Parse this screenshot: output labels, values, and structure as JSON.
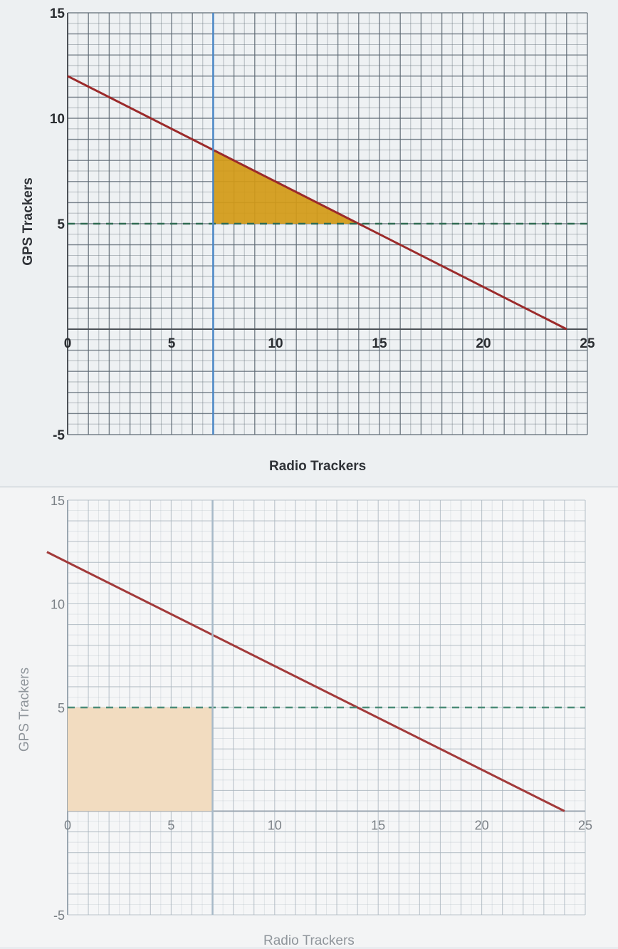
{
  "chart_data": [
    {
      "type": "line",
      "xlabel": "Radio Trackers",
      "ylabel": "GPS Trackers",
      "xlim": [
        0,
        25
      ],
      "ylim": [
        -5,
        15
      ],
      "x_ticks": [
        0,
        5,
        10,
        15,
        20,
        25
      ],
      "y_ticks": [
        -5,
        5,
        10,
        15
      ],
      "x_tick_labels": [
        "0",
        "5",
        "10",
        "15",
        "20",
        "25"
      ],
      "y_tick_labels": [
        "-5",
        "5",
        "10",
        "15"
      ],
      "grid": true,
      "series": [
        {
          "style": "solid",
          "color": "#9b2a2a",
          "x": [
            0,
            24
          ],
          "y": [
            12,
            0
          ]
        },
        {
          "style": "dashed",
          "color": "#2f6b52",
          "x": [
            0,
            25
          ],
          "y": [
            5,
            5
          ]
        },
        {
          "style": "solid-vertical",
          "color": "#4a86c5",
          "x": [
            7,
            7
          ],
          "y": [
            -5,
            15
          ]
        }
      ],
      "shaded_regions": [
        {
          "color": "#d39a16",
          "vertices": [
            [
              7,
              5
            ],
            [
              7,
              8.5
            ],
            [
              14,
              5
            ]
          ]
        }
      ],
      "colors": {
        "line": "#9b2a2a",
        "dashed": "#2f6b52",
        "vertical": "#4a86c5",
        "shade": "#d39a16",
        "grid": "#5a6670"
      }
    },
    {
      "type": "line",
      "xlabel": "Radio Trackers",
      "ylabel": "GPS Trackers",
      "xlim": [
        0,
        25
      ],
      "ylim": [
        -5,
        15
      ],
      "x_ticks": [
        0,
        5,
        10,
        15,
        20,
        25
      ],
      "y_ticks": [
        -5,
        5,
        10,
        15
      ],
      "x_tick_labels": [
        "0",
        "5",
        "10",
        "15",
        "20",
        "25"
      ],
      "y_tick_labels": [
        "-5",
        "5",
        "10",
        "15"
      ],
      "grid": true,
      "series": [
        {
          "style": "solid",
          "color": "#a23a3a",
          "x": [
            -1,
            24
          ],
          "y": [
            12.5,
            0
          ]
        },
        {
          "style": "dashed",
          "color": "#4c8c78",
          "x": [
            0,
            25
          ],
          "y": [
            5,
            5
          ]
        },
        {
          "style": "solid-vertical",
          "color": "#a7b9c8",
          "x": [
            7,
            7
          ],
          "y": [
            -5,
            15
          ]
        }
      ],
      "shaded_regions": [
        {
          "color": "#f2dcc0",
          "vertices": [
            [
              0,
              0
            ],
            [
              0,
              5
            ],
            [
              7,
              5
            ],
            [
              7,
              0
            ]
          ]
        }
      ],
      "colors": {
        "line": "#a23a3a",
        "dashed": "#4c8c78",
        "vertical": "#a7b9c8",
        "shade": "#f2dcc0",
        "grid": "#a8b4bd"
      }
    }
  ]
}
